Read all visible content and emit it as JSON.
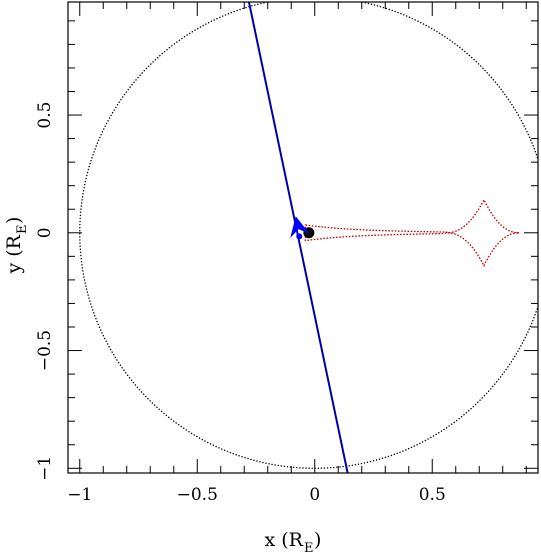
{
  "chart_data": {
    "type": "scatter",
    "title": "",
    "xlabel": "x (R",
    "xlabel_sub": "E",
    "xlabel_close": ")",
    "ylabel": "y (R",
    "ylabel_sub": "E",
    "ylabel_close": ")",
    "xlim": [
      -1.05,
      0.95
    ],
    "ylim": [
      -1.02,
      0.98
    ],
    "xticks": [
      -1,
      -0.5,
      0,
      0.5
    ],
    "xtick_labels": [
      "−1",
      "−0.5",
      "0",
      "0.5"
    ],
    "yticks": [
      -1,
      -0.5,
      0,
      0.5
    ],
    "ytick_labels": [
      "−1",
      "−0.5",
      "0",
      "0.5"
    ],
    "grid": false,
    "einstein_ring": {
      "center": [
        0,
        0
      ],
      "radius": 1.0,
      "color": "#000000",
      "style": "dotted"
    },
    "caustic": {
      "separation": 0.97,
      "color": "#cc0000",
      "style": "dotted",
      "central_cusp_x": -0.04,
      "planetary_center": [
        0.72,
        0
      ],
      "planetary_cusps": [
        0.56,
        0.87
      ],
      "planetary_half_height": 0.14
    },
    "source_trajectory": {
      "points": [
        [
          -0.28,
          0.98
        ],
        [
          0.14,
          -1.02
        ]
      ],
      "color": "#0000aa"
    },
    "direction_arrow": {
      "position": [
        -0.07,
        0.02
      ],
      "color": "#0000ff"
    },
    "source_point": {
      "position": [
        -0.066,
        -0.015
      ],
      "color": "#0000ff"
    },
    "lens_point": {
      "position": [
        -0.025,
        0.0
      ],
      "color": "#000000"
    }
  }
}
